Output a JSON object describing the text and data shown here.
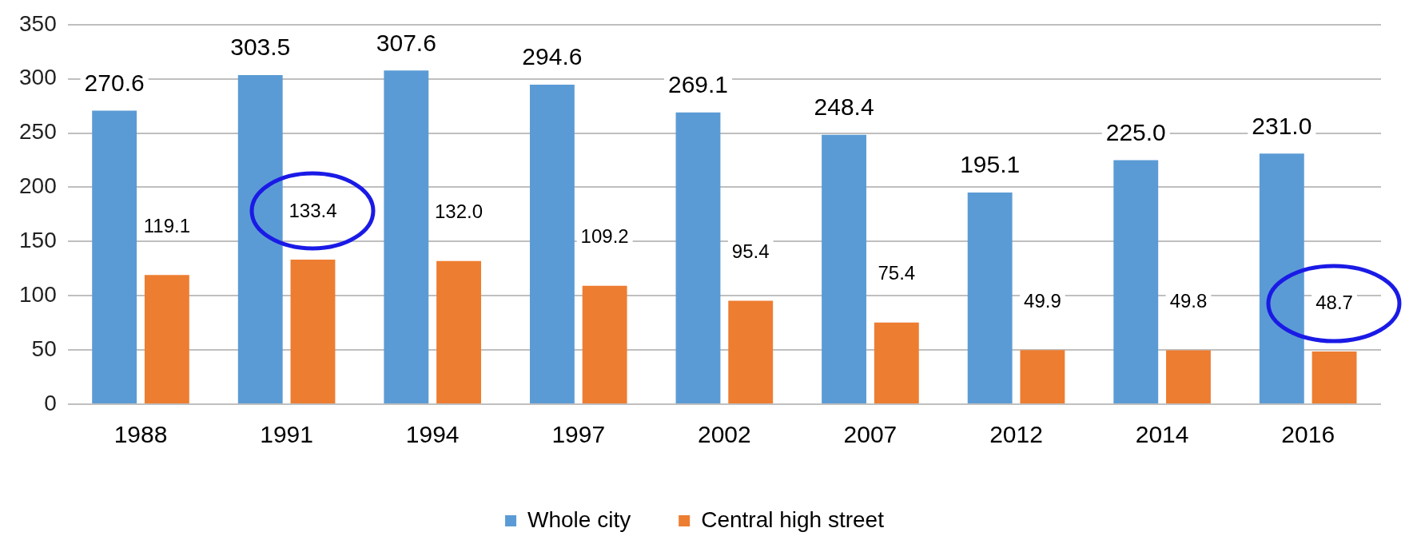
{
  "chart_data": {
    "type": "bar",
    "categories": [
      "1988",
      "1991",
      "1994",
      "1997",
      "2002",
      "2007",
      "2012",
      "2014",
      "2016"
    ],
    "series": [
      {
        "name": "Whole city",
        "color": "#5b9bd5",
        "values": [
          270.6,
          303.5,
          307.6,
          294.6,
          269.1,
          248.4,
          195.1,
          225.0,
          231.0
        ],
        "value_labels": [
          "270.6",
          "303.5",
          "307.6",
          "294.6",
          "269.1",
          "248.4",
          "195.1",
          "225.0",
          "231.0"
        ]
      },
      {
        "name": "Central high street",
        "color": "#ed7d31",
        "values": [
          119.1,
          133.4,
          132.0,
          109.2,
          95.4,
          75.4,
          49.9,
          49.8,
          48.7
        ],
        "value_labels": [
          "119.1",
          "133.4",
          "132.0",
          "109.2",
          "95.4",
          "75.4",
          "49.9",
          "49.8",
          "48.7"
        ]
      }
    ],
    "ylim": [
      0,
      350
    ],
    "yticks": [
      0,
      50,
      100,
      150,
      200,
      250,
      300,
      350
    ],
    "grid": "y",
    "legend": "bottom"
  }
}
